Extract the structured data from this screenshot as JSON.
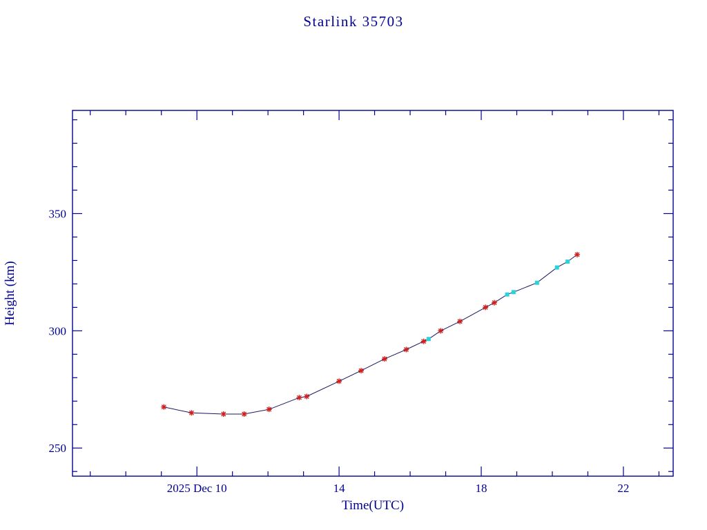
{
  "chart_data": {
    "type": "line",
    "title": "Starlink 35703",
    "xlabel": "Time(UTC)",
    "ylabel": "Height (km)",
    "x_units": "hour of day (UTC) on 2025 Dec 10",
    "xlim": [
      6.5,
      23.4
    ],
    "ylim": [
      238,
      394
    ],
    "x_ticks": [
      {
        "value": 10,
        "label": "2025 Dec 10"
      },
      {
        "value": 14,
        "label": "14"
      },
      {
        "value": 18,
        "label": "18"
      },
      {
        "value": 22,
        "label": "22"
      }
    ],
    "x_minor_tick_step": 1,
    "y_ticks": [
      {
        "value": 250,
        "label": "250"
      },
      {
        "value": 300,
        "label": "300"
      },
      {
        "value": 350,
        "label": "350"
      }
    ],
    "y_minor_tick_step": 10,
    "grid": false,
    "legend": "none",
    "axis_color": "#000090",
    "line_color": "#161660",
    "series_styles": {
      "observed": {
        "marker": "asterisk",
        "color": "#cf1f1f"
      },
      "predicted": {
        "marker": "square",
        "color": "#2ad2dc"
      }
    },
    "points": [
      {
        "t": 9.07,
        "h": 267.5,
        "series": "observed"
      },
      {
        "t": 9.85,
        "h": 265.0,
        "series": "observed"
      },
      {
        "t": 10.75,
        "h": 264.5,
        "series": "observed"
      },
      {
        "t": 11.33,
        "h": 264.5,
        "series": "observed"
      },
      {
        "t": 12.03,
        "h": 266.5,
        "series": "observed"
      },
      {
        "t": 12.88,
        "h": 271.5,
        "series": "observed"
      },
      {
        "t": 13.09,
        "h": 272.0,
        "series": "observed"
      },
      {
        "t": 14.0,
        "h": 278.5,
        "series": "observed"
      },
      {
        "t": 14.62,
        "h": 283.0,
        "series": "observed"
      },
      {
        "t": 15.28,
        "h": 288.0,
        "series": "observed"
      },
      {
        "t": 15.89,
        "h": 292.0,
        "series": "observed"
      },
      {
        "t": 16.38,
        "h": 295.5,
        "series": "observed"
      },
      {
        "t": 16.52,
        "h": 296.5,
        "series": "predicted"
      },
      {
        "t": 16.86,
        "h": 300.0,
        "series": "observed"
      },
      {
        "t": 17.4,
        "h": 304.0,
        "series": "observed"
      },
      {
        "t": 18.12,
        "h": 310.0,
        "series": "observed"
      },
      {
        "t": 18.37,
        "h": 312.0,
        "series": "observed"
      },
      {
        "t": 18.73,
        "h": 315.5,
        "series": "predicted"
      },
      {
        "t": 18.91,
        "h": 316.5,
        "series": "predicted"
      },
      {
        "t": 19.57,
        "h": 320.5,
        "series": "predicted"
      },
      {
        "t": 20.13,
        "h": 327.0,
        "series": "predicted"
      },
      {
        "t": 20.43,
        "h": 329.5,
        "series": "predicted"
      },
      {
        "t": 20.7,
        "h": 332.5,
        "series": "observed"
      }
    ]
  }
}
